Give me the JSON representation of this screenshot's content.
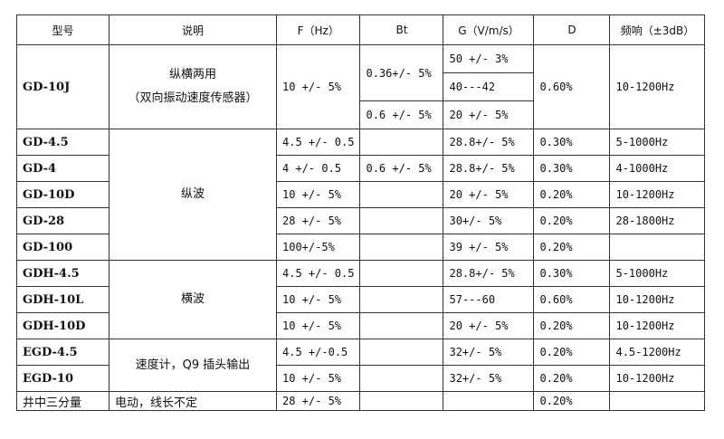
{
  "headers": [
    "型号",
    "说明",
    "F（Hz）",
    "Bt",
    "G（V/m/s）",
    "D",
    "频响（±3dB）"
  ],
  "gd10j": {
    "model": "GD-10J",
    "desc_line1": "纵横两用",
    "desc_line2": "（双向振动速度传感器）",
    "f": "10 +/- 5%",
    "bt1": "0.36+/- 5%",
    "bt2": "0.6 +/- 5%",
    "g1": "50 +/- 3%",
    "g2": "40---42",
    "g3": "20 +/- 5%",
    "d": "0.60%",
    "freq": "10-1200Hz"
  },
  "groups": {
    "longitudinal": "纵波",
    "transverse": "横波",
    "velocimeter": "速度计，Q9 插头输出"
  },
  "rows": [
    {
      "model": "GD-4.5",
      "f": "4.5 +/- 0.5",
      "bt": "",
      "g": "28.8+/- 5%",
      "d": "0.30%",
      "freq": "5-1000Hz"
    },
    {
      "model": "GD-4",
      "f": "4 +/- 0.5",
      "bt": "0.6 +/- 5%",
      "g": "28.8+/- 5%",
      "d": "0.30%",
      "freq": "4-1000Hz"
    },
    {
      "model": "GD-10D",
      "f": "10 +/- 5%",
      "bt": "",
      "g": "20 +/- 5%",
      "d": "0.20%",
      "freq": "10-1200Hz"
    },
    {
      "model": "GD-28",
      "f": "28 +/- 5%",
      "bt": "",
      "g": "30+/- 5%",
      "d": "0.20%",
      "freq": "28-1800Hz"
    },
    {
      "model": "GD-100",
      "f": "100+/-5%",
      "bt": "",
      "g": "39 +/- 5%",
      "d": "0.20%",
      "freq": ""
    },
    {
      "model": "GDH-4.5",
      "f": "4.5 +/- 0.5",
      "bt": "",
      "g": "28.8+/- 5%",
      "d": "0.30%",
      "freq": "5-1000Hz"
    },
    {
      "model": "GDH-10L",
      "f": "10 +/- 5%",
      "bt": "",
      "g": "57---60",
      "d": "0.60%",
      "freq": "10-1200Hz"
    },
    {
      "model": "GDH-10D",
      "f": "10 +/- 5%",
      "bt": "",
      "g": "20 +/- 5%",
      "d": "0.20%",
      "freq": "10-1200Hz"
    },
    {
      "model": "EGD-4.5",
      "f": "4.5 +/-0.5",
      "bt": "",
      "g": "32+/- 5%",
      "d": "0.20%",
      "freq": "4.5-1200Hz"
    },
    {
      "model": "EGD-10",
      "f": "10 +/- 5%",
      "bt": "",
      "g": "32+/- 5%",
      "d": "0.20%",
      "freq": "10-1200Hz"
    },
    {
      "model": "井中三分量",
      "desc": "电动，线长不定",
      "f": "28 +/- 5%",
      "bt": "",
      "g": "",
      "d": "0.20%",
      "freq": ""
    }
  ]
}
